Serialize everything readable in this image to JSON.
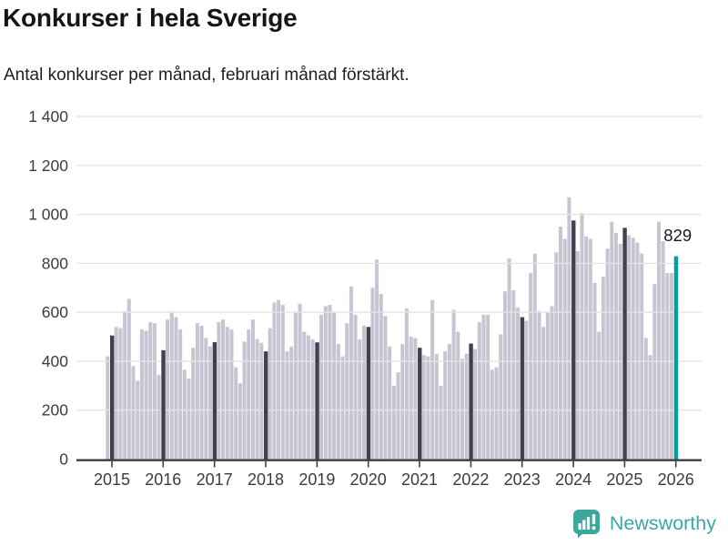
{
  "header": {
    "title": "Konkurser i hela Sverige",
    "subtitle": "Antal konkurser per månad, februari månad förstärkt."
  },
  "chart_data": {
    "type": "bar",
    "title": "Konkurser i hela Sverige",
    "subtitle": "Antal konkurser per månad, februari månad förstärkt.",
    "xlabel": "",
    "ylabel": "",
    "ylim": [
      0,
      1400
    ],
    "grid": true,
    "yticks": [
      {
        "value": 0,
        "label": "0"
      },
      {
        "value": 200,
        "label": "200"
      },
      {
        "value": 400,
        "label": "400"
      },
      {
        "value": 600,
        "label": "600"
      },
      {
        "value": 800,
        "label": "800"
      },
      {
        "value": 1000,
        "label": "1 000"
      },
      {
        "value": 1200,
        "label": "1 200"
      },
      {
        "value": 1400,
        "label": "1 400"
      }
    ],
    "years": [
      "2015",
      "2016",
      "2017",
      "2018",
      "2019",
      "2020",
      "2021",
      "2022",
      "2023",
      "2024",
      "2025",
      "2026"
    ],
    "monthly_values": {
      "2015": [
        420,
        505,
        540,
        535,
        605,
        655,
        380,
        320,
        530,
        525,
        560,
        555
      ],
      "2016": [
        345,
        445,
        570,
        600,
        580,
        530,
        365,
        330,
        455,
        555,
        545,
        495
      ],
      "2017": [
        460,
        478,
        560,
        570,
        540,
        530,
        375,
        310,
        480,
        530,
        570,
        490
      ],
      "2018": [
        475,
        440,
        535,
        640,
        650,
        630,
        440,
        460,
        600,
        635,
        520,
        505
      ],
      "2019": [
        490,
        477,
        590,
        625,
        630,
        600,
        470,
        420,
        555,
        705,
        590,
        490
      ],
      "2020": [
        545,
        540,
        700,
        815,
        675,
        585,
        460,
        300,
        355,
        470,
        615,
        500
      ],
      "2021": [
        495,
        455,
        425,
        420,
        650,
        430,
        300,
        440,
        470,
        610,
        520,
        410
      ],
      "2022": [
        430,
        472,
        450,
        560,
        590,
        590,
        365,
        375,
        510,
        685,
        820,
        690
      ],
      "2023": [
        620,
        580,
        565,
        760,
        840,
        605,
        540,
        600,
        625,
        845,
        950,
        900
      ],
      "2024": [
        1070,
        975,
        850,
        1005,
        910,
        900,
        720,
        520,
        745,
        860,
        970,
        925
      ],
      "2025": [
        880,
        945,
        915,
        905,
        885,
        840,
        495,
        425,
        715,
        970,
        890,
        760
      ],
      "2026": [
        760,
        829
      ]
    },
    "highlighted_month": "februari",
    "latest": {
      "month": "februari 2026",
      "value": 829,
      "label": "829"
    },
    "legend_position": "none"
  },
  "colors": {
    "bar": "#c7c5d1",
    "february_bar": "#434050",
    "latest_bar": "#00a09a",
    "grid": "#e4e4e6",
    "axis": "#3f3e45",
    "tick_text": "#3c3c3c",
    "annotation_text": "#1a1a1a",
    "brand": "#3ea79c"
  },
  "branding": {
    "name": "Newsworthy"
  }
}
